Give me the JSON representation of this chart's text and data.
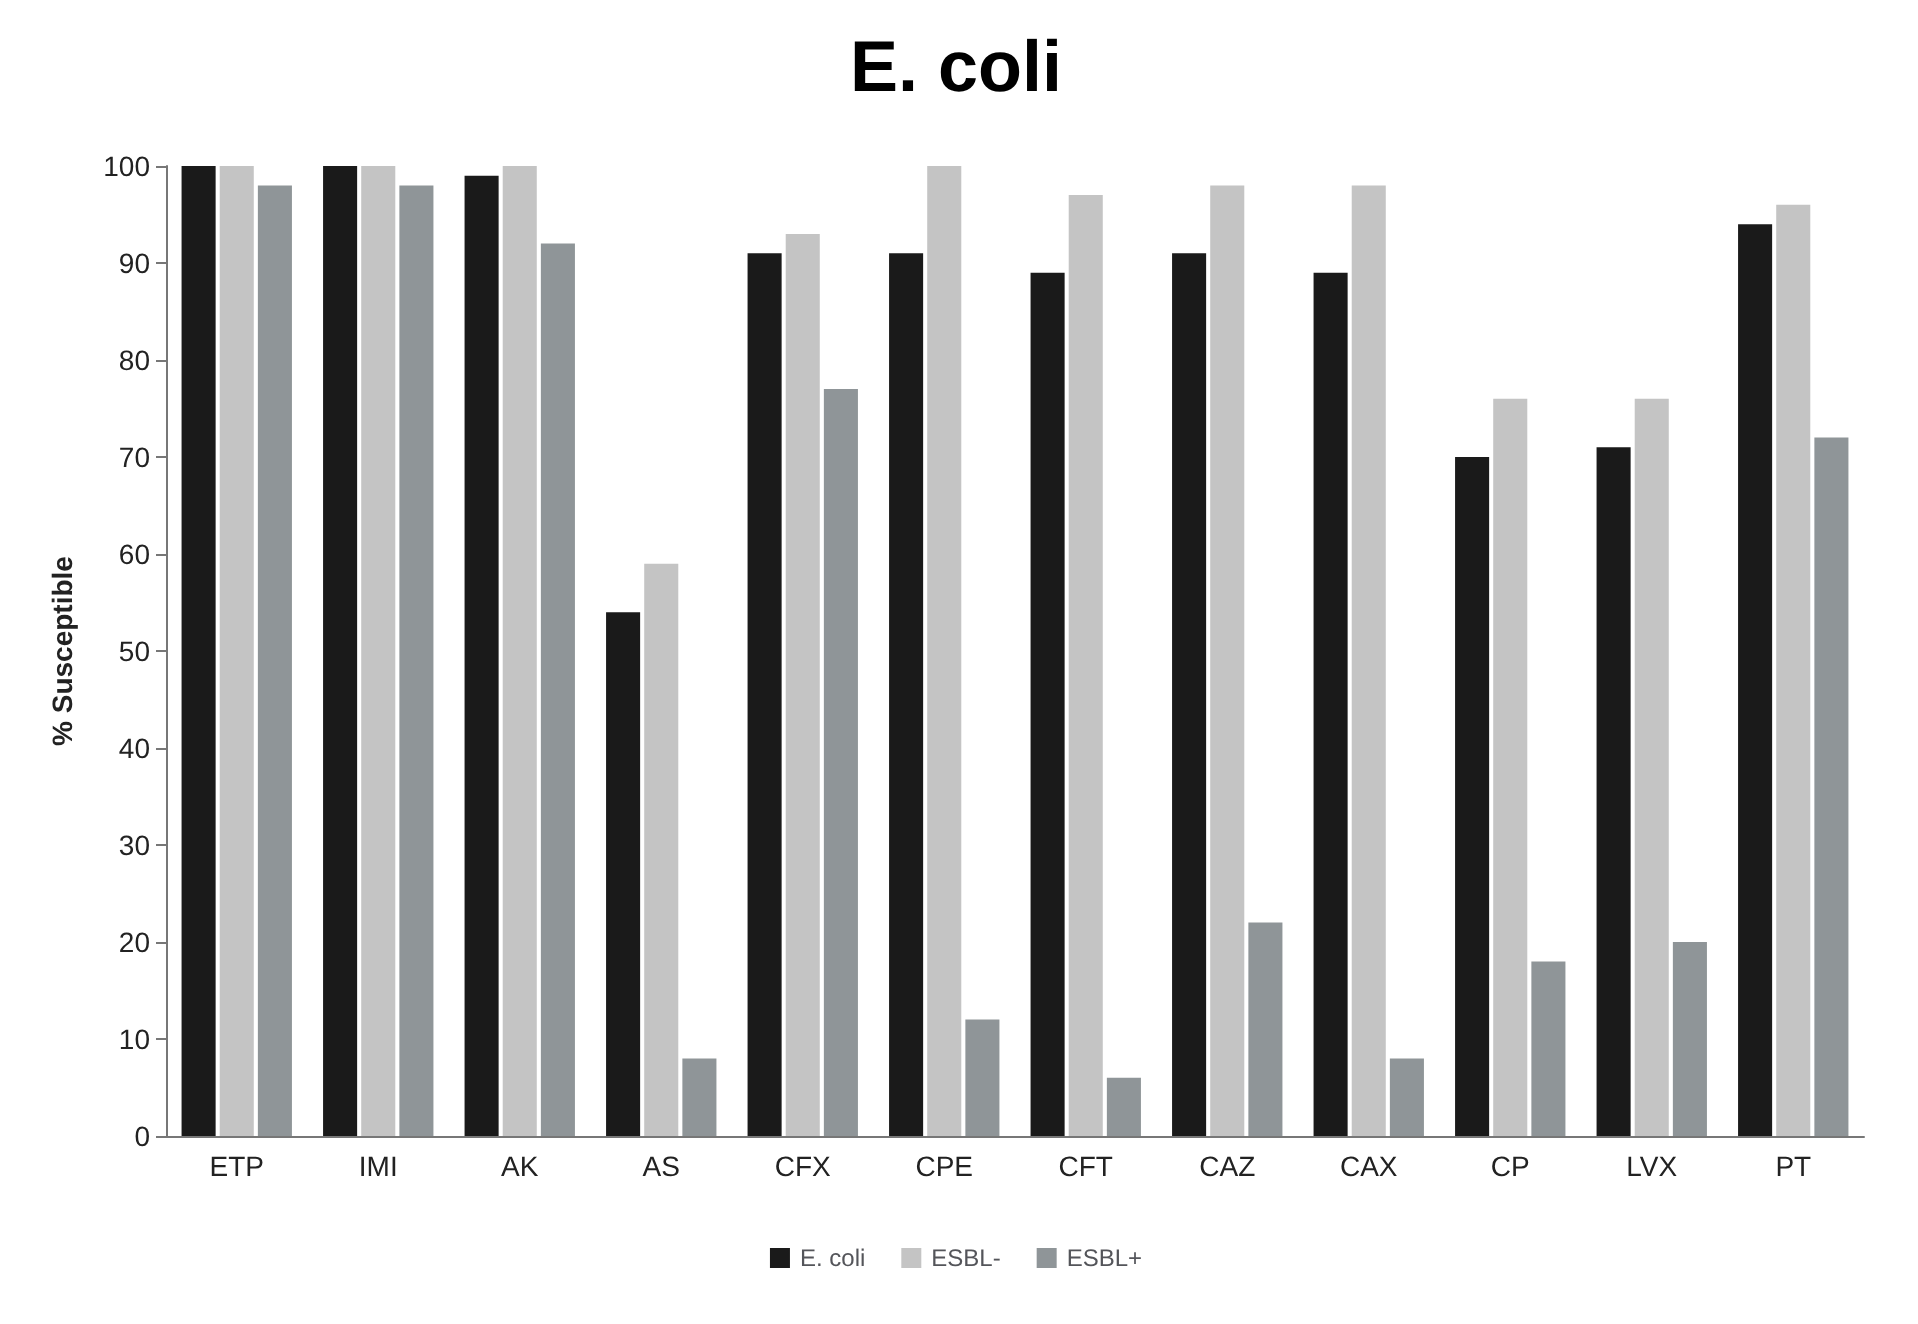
{
  "chart_data": {
    "type": "bar",
    "title": "E. coli",
    "ylabel": "% Susceptible",
    "categories": [
      "ETP",
      "IMI",
      "AK",
      "AS",
      "CFX",
      "CPE",
      "CFT",
      "CAZ",
      "CAX",
      "CP",
      "LVX",
      "PT"
    ],
    "series": [
      {
        "name": "E. coli",
        "color": "#1a1a1a",
        "values": [
          100,
          100,
          99,
          54,
          91,
          91,
          89,
          91,
          89,
          70,
          71,
          94
        ]
      },
      {
        "name": "ESBL-",
        "color": "#c4c4c4",
        "values": [
          100,
          100,
          100,
          59,
          93,
          100,
          97,
          98,
          98,
          76,
          76,
          96
        ]
      },
      {
        "name": "ESBL+",
        "color": "#8f9598",
        "values": [
          98,
          98,
          92,
          8,
          77,
          12,
          6,
          22,
          8,
          18,
          20,
          72
        ]
      }
    ],
    "ylim": [
      0,
      100
    ],
    "yticks": [
      0,
      10,
      20,
      30,
      40,
      50,
      60,
      70,
      80,
      90,
      100
    ],
    "grid": false,
    "legend": "bottom"
  }
}
